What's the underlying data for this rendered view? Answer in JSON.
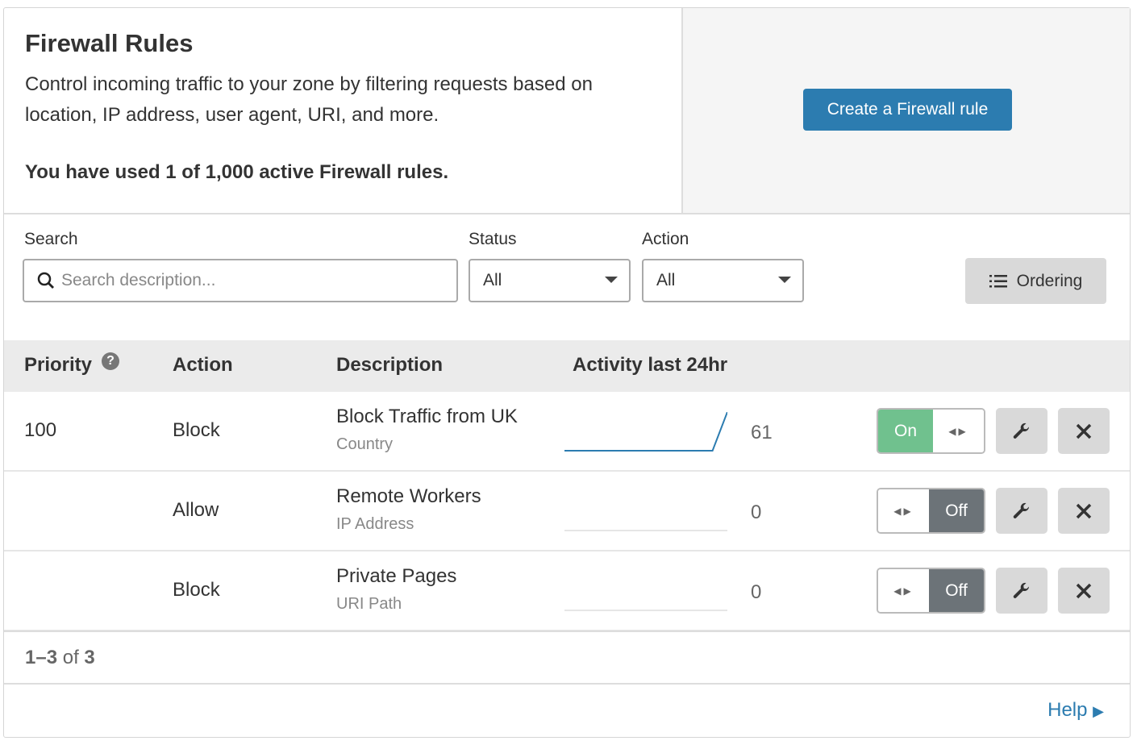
{
  "header": {
    "title": "Firewall Rules",
    "description": "Control incoming traffic to your zone by filtering requests based on location, IP address, user agent, URI, and more.",
    "usage": "You have used 1 of 1,000 active Firewall rules.",
    "create_button": "Create a Firewall rule"
  },
  "filters": {
    "search_label": "Search",
    "search_placeholder": "Search description...",
    "search_value": "",
    "status_label": "Status",
    "status_value": "All",
    "action_label": "Action",
    "action_value": "All",
    "ordering_button": "Ordering"
  },
  "table": {
    "columns": [
      "Priority",
      "Action",
      "Description",
      "Activity last 24hr"
    ],
    "rows": [
      {
        "priority": "100",
        "action": "Block",
        "description": "Block Traffic from UK",
        "type": "Country",
        "count": "61",
        "toggle": "On",
        "enabled": true,
        "activity": [
          0,
          0,
          0,
          0,
          0,
          0,
          0,
          0,
          0,
          0,
          0,
          61
        ]
      },
      {
        "priority": "",
        "action": "Allow",
        "description": "Remote Workers",
        "type": "IP Address",
        "count": "0",
        "toggle": "Off",
        "enabled": false,
        "activity": [
          0,
          0,
          0,
          0,
          0,
          0,
          0,
          0,
          0,
          0,
          0,
          0
        ]
      },
      {
        "priority": "",
        "action": "Block",
        "description": "Private Pages",
        "type": "URI Path",
        "count": "0",
        "toggle": "Off",
        "enabled": false,
        "activity": [
          0,
          0,
          0,
          0,
          0,
          0,
          0,
          0,
          0,
          0,
          0,
          0
        ]
      }
    ]
  },
  "pagination": {
    "range": "1–3",
    "of": "of",
    "total": "3"
  },
  "help_link": "Help",
  "colors": {
    "primary": "#2c7cb0",
    "on": "#70c18e",
    "off": "#6c7378"
  }
}
